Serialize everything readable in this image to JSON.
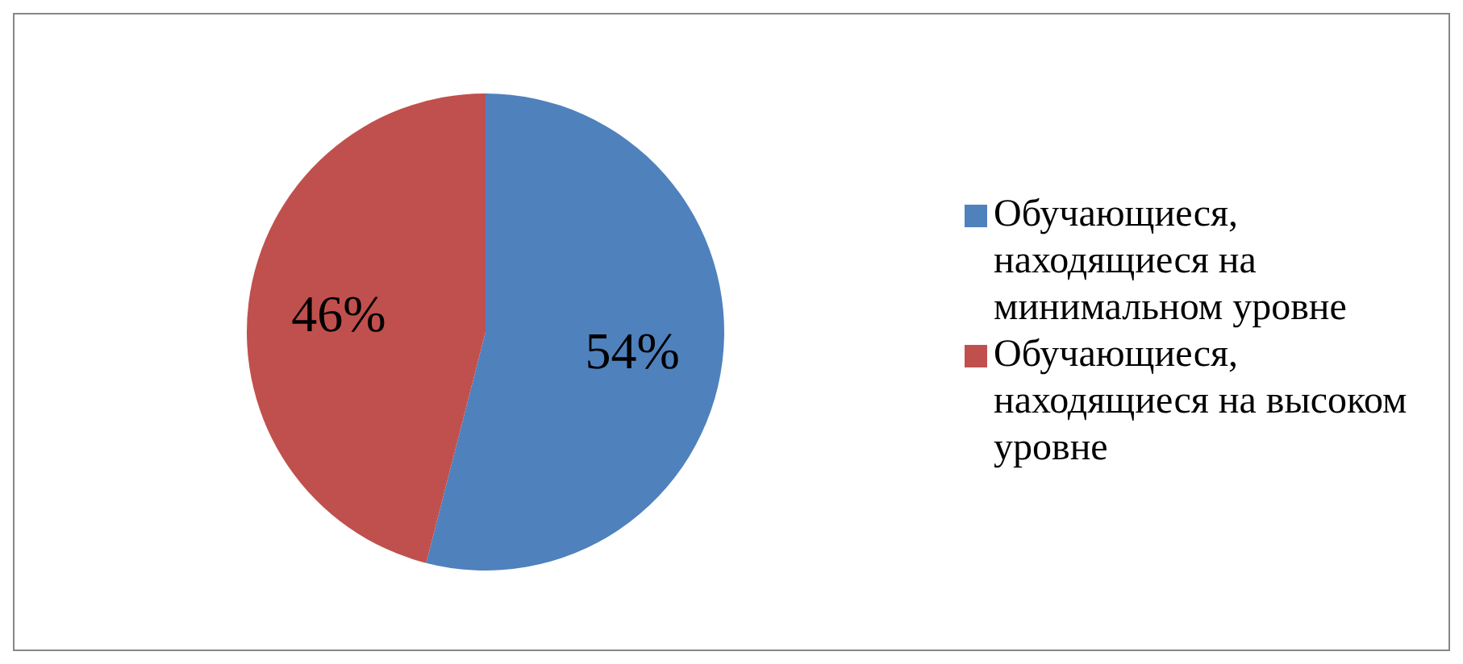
{
  "chart_data": {
    "type": "pie",
    "categories": [
      "Обучающиеся, находящиеся на минимальном уровне",
      "Обучающиеся, находящиеся на высоком уровне"
    ],
    "values": [
      54,
      46
    ],
    "colors": [
      "#4f81bd",
      "#c0504d"
    ],
    "value_labels": [
      "54%",
      "46%"
    ],
    "legend": "right"
  }
}
